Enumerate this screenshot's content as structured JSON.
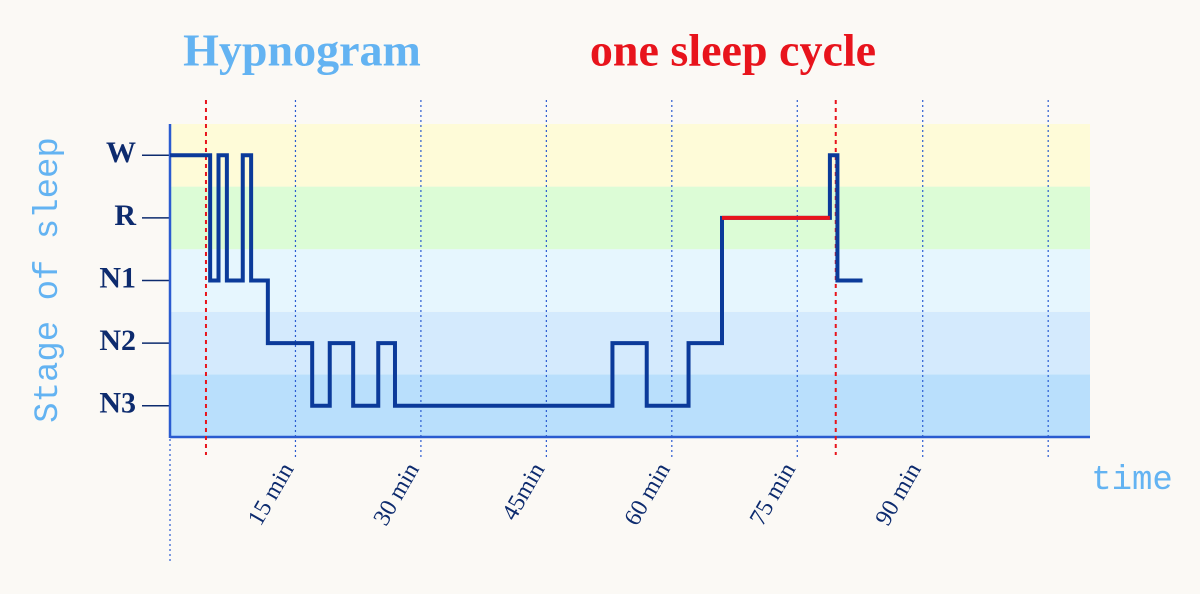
{
  "chart_data": {
    "type": "line",
    "title": "Hypnogram",
    "subtitle": "one sleep cycle",
    "y_label": "Stage of sleep",
    "x_label": "time",
    "x": [
      0,
      4.8,
      4.8,
      5.8,
      5.8,
      6.8,
      6.8,
      8.7,
      8.7,
      9.7,
      9.7,
      11.7,
      11.7,
      17,
      17,
      19.1,
      19.1,
      21.9,
      21.9,
      24.9,
      24.9,
      26.9,
      26.9,
      52.9,
      52.9,
      57,
      57,
      62,
      62,
      66,
      66,
      78.9,
      78.9,
      79.8,
      79.8,
      82.8
    ],
    "values": [
      4,
      4,
      2,
      2,
      4,
      4,
      2,
      2,
      4,
      4,
      2,
      2,
      1,
      1,
      0,
      0,
      1,
      1,
      0,
      0,
      1,
      1,
      0,
      0,
      1,
      1,
      0,
      0,
      1,
      1,
      3,
      3,
      4,
      4,
      2,
      2
    ],
    "color": "#0b3a9a",
    "highlight": {
      "x": [
        66,
        78.9
      ],
      "values": [
        3,
        3
      ],
      "color": "#e8141c"
    },
    "markers": [
      4.3,
      79.6
    ],
    "marker_color": "#e8141c",
    "xlim": [
      0,
      110
    ],
    "ylim": [
      -0.5,
      4.5
    ],
    "xticks": [
      {
        "value": 15,
        "label": "15 min"
      },
      {
        "value": 30,
        "label": "30 min"
      },
      {
        "value": 45,
        "label": "45min"
      },
      {
        "value": 60,
        "label": "60 min"
      },
      {
        "value": 75,
        "label": "75 min"
      },
      {
        "value": 90,
        "label": "90 min"
      }
    ],
    "xgrid": [
      0,
      15,
      30,
      45,
      60,
      75,
      90,
      105
    ],
    "yticks": [
      {
        "value": 0,
        "label": "N3"
      },
      {
        "value": 1,
        "label": "N2"
      },
      {
        "value": 2,
        "label": "N1"
      },
      {
        "value": 3,
        "label": "R"
      },
      {
        "value": 4,
        "label": "W"
      }
    ],
    "band_colors": [
      "#b9dffc",
      "#d4eafd",
      "#e6f6fe",
      "#dcfcd6",
      "#fefbd8"
    ]
  }
}
